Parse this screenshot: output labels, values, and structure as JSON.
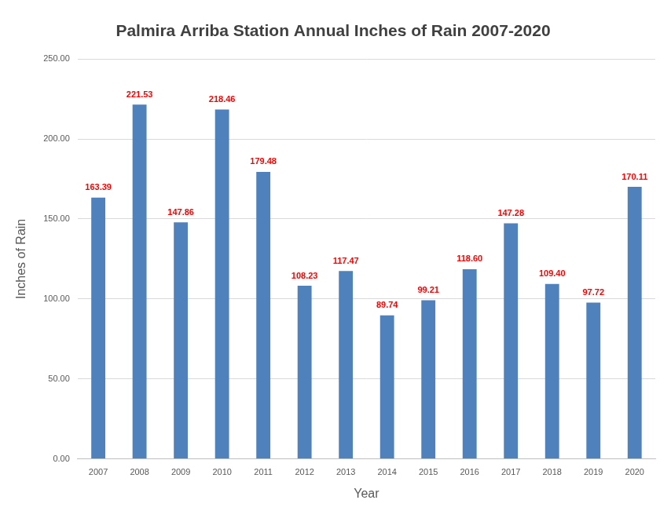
{
  "chart_data": {
    "type": "bar",
    "title": "Palmira Arriba Station Annual Inches of Rain 2007-2020",
    "x_label": "Year",
    "y_label": "Inches of Rain",
    "categories": [
      "2007",
      "2008",
      "2009",
      "2010",
      "2011",
      "2012",
      "2013",
      "2014",
      "2015",
      "2016",
      "2017",
      "2018",
      "2019",
      "2020"
    ],
    "values": [
      163.39,
      221.53,
      147.86,
      218.46,
      179.48,
      108.23,
      117.47,
      89.74,
      99.21,
      118.6,
      147.28,
      109.4,
      97.72,
      170.11
    ],
    "value_labels": [
      "163.39",
      "221.53",
      "147.86",
      "218.46",
      "179.48",
      "108.23",
      "117.47",
      "89.74",
      "99.21",
      "118.60",
      "147.28",
      "109.40",
      "97.72",
      "170.11"
    ],
    "color": "#4f81bd",
    "ylim": [
      0,
      250
    ],
    "yticks": [
      {
        "value": 0,
        "label": "0.00"
      },
      {
        "value": 50,
        "label": "50.00"
      },
      {
        "value": 100,
        "label": "100.00"
      },
      {
        "value": 150,
        "label": "150.00"
      },
      {
        "value": 200,
        "label": "200.00"
      },
      {
        "value": 250,
        "label": "250.00"
      }
    ],
    "grid": true,
    "data_labels": true
  }
}
